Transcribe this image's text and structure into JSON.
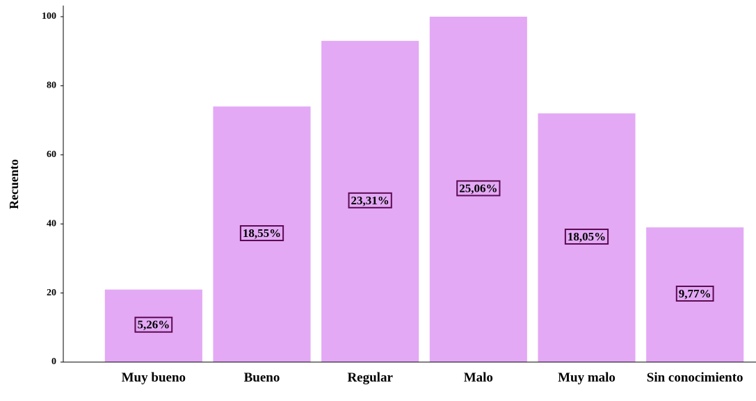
{
  "chart_data": {
    "type": "bar",
    "y_label": "Recuento",
    "categories": [
      "Muy bueno",
      "Bueno",
      "Regular",
      "Malo",
      "Muy malo",
      "Sin conocimiento"
    ],
    "values": [
      21,
      74,
      93,
      100,
      72,
      39
    ],
    "bar_labels": [
      "5,26%",
      "18,55%",
      "23,31%",
      "25,06%",
      "18,05%",
      "9,77%"
    ],
    "color": "#e3a9f5",
    "label_color": "#5c0a52",
    "ylim": [
      0,
      100
    ],
    "yticks": [
      0,
      20,
      40,
      60,
      80,
      100
    ],
    "grid": false
  }
}
